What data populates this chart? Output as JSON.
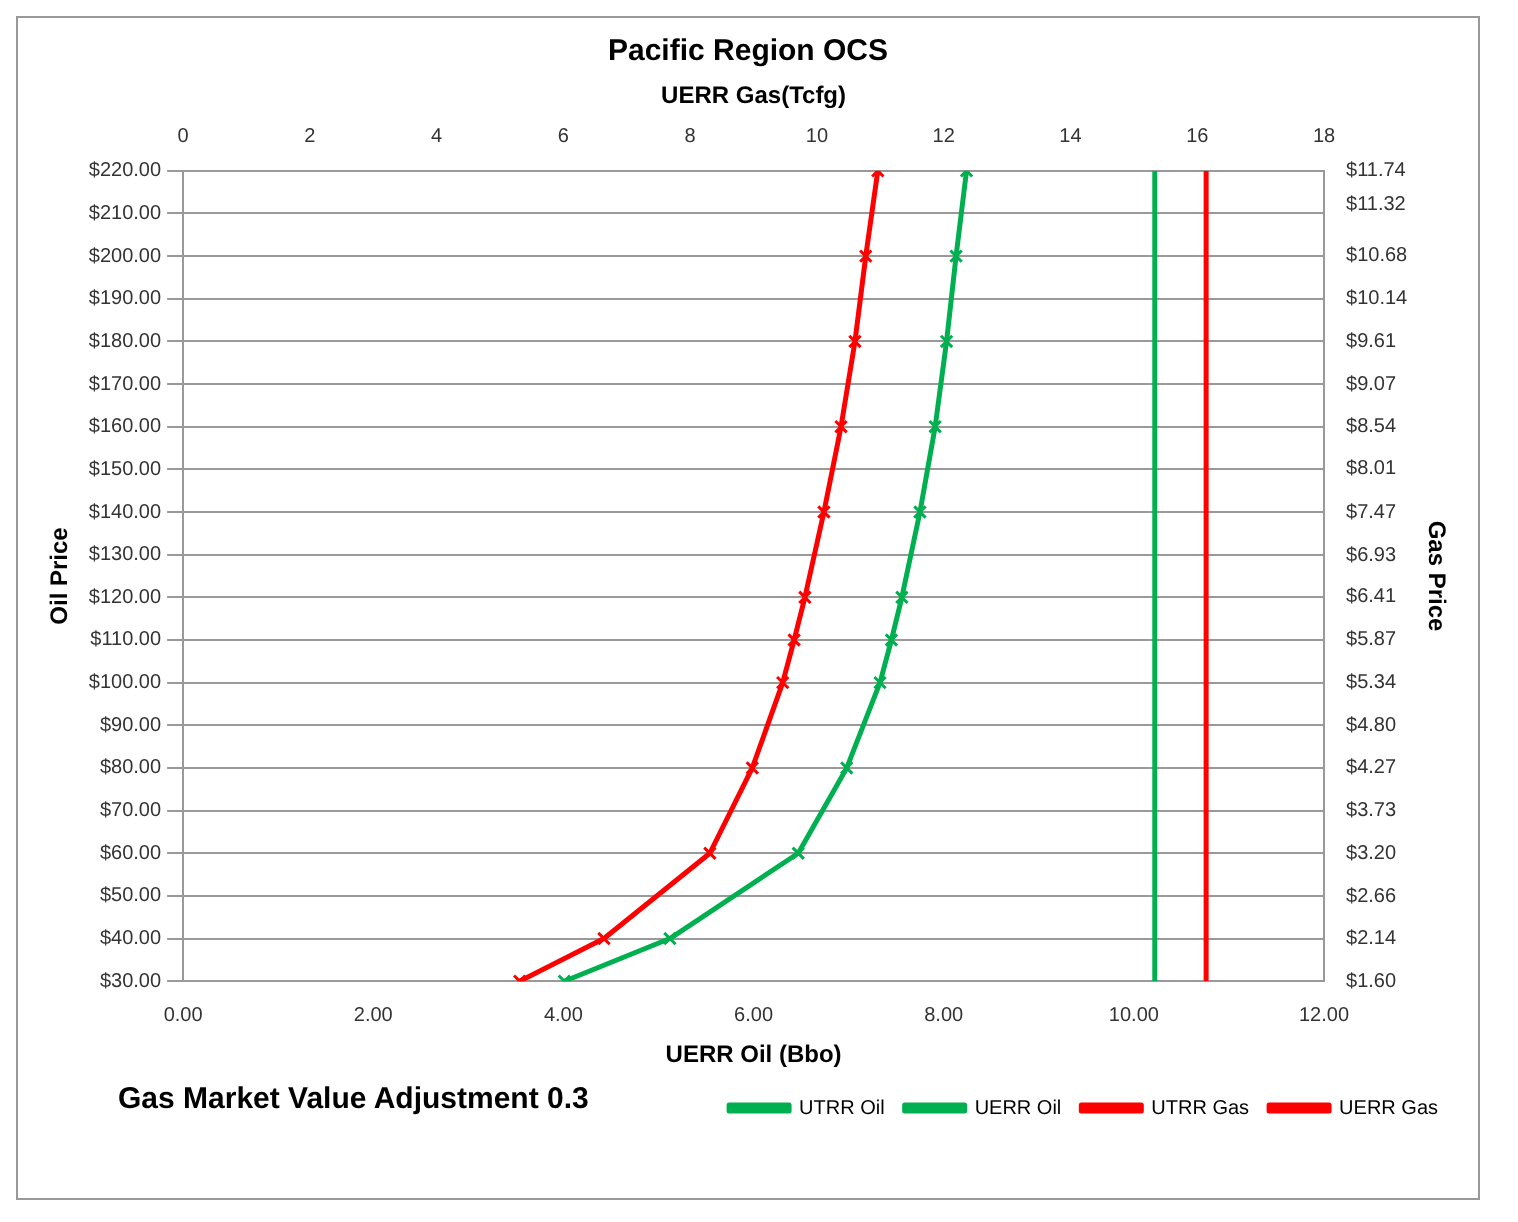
{
  "chart_data": {
    "type": "line",
    "title": "Pacific Region OCS",
    "xlabel": "UERR Oil (Bbo)",
    "x2label": "UERR Gas(Tcfg)",
    "ylabel": "Oil Price",
    "y2label": "Gas Price",
    "annotations": [
      "Gas Market Value Adjustment 0.3"
    ],
    "xlim": [
      0,
      12
    ],
    "xticks": [
      {
        "value": 0,
        "label": "0.00"
      },
      {
        "value": 2,
        "label": "2.00"
      },
      {
        "value": 4,
        "label": "4.00"
      },
      {
        "value": 6,
        "label": "6.00"
      },
      {
        "value": 8,
        "label": "8.00"
      },
      {
        "value": 10,
        "label": "10.00"
      },
      {
        "value": 12,
        "label": "12.00"
      }
    ],
    "x2lim": [
      0,
      18
    ],
    "x2ticks": [
      0,
      2,
      4,
      6,
      8,
      10,
      12,
      14,
      16,
      18
    ],
    "ylim": [
      30,
      220
    ],
    "yticks": [
      {
        "value": 30,
        "label": "$30.00"
      },
      {
        "value": 40,
        "label": "$40.00"
      },
      {
        "value": 50,
        "label": "$50.00"
      },
      {
        "value": 60,
        "label": "$60.00"
      },
      {
        "value": 70,
        "label": "$70.00"
      },
      {
        "value": 80,
        "label": "$80.00"
      },
      {
        "value": 90,
        "label": "$90.00"
      },
      {
        "value": 100,
        "label": "$100.00"
      },
      {
        "value": 110,
        "label": "$110.00"
      },
      {
        "value": 120,
        "label": "$120.00"
      },
      {
        "value": 130,
        "label": "$130.00"
      },
      {
        "value": 140,
        "label": "$140.00"
      },
      {
        "value": 150,
        "label": "$150.00"
      },
      {
        "value": 160,
        "label": "$160.00"
      },
      {
        "value": 170,
        "label": "$170.00"
      },
      {
        "value": 180,
        "label": "$180.00"
      },
      {
        "value": 190,
        "label": "$190.00"
      },
      {
        "value": 200,
        "label": "$200.00"
      },
      {
        "value": 210,
        "label": "$210.00"
      },
      {
        "value": 220,
        "label": "$220.00"
      }
    ],
    "y2lim": [
      1.6,
      11.74
    ],
    "y2ticks": [
      {
        "value": 1.6,
        "label": "$1.60"
      },
      {
        "value": 2.14,
        "label": "$2.14"
      },
      {
        "value": 2.66,
        "label": "$2.66"
      },
      {
        "value": 3.2,
        "label": "$3.20"
      },
      {
        "value": 3.73,
        "label": "$3.73"
      },
      {
        "value": 4.27,
        "label": "$4.27"
      },
      {
        "value": 4.8,
        "label": "$4.80"
      },
      {
        "value": 5.34,
        "label": "$5.34"
      },
      {
        "value": 5.87,
        "label": "$5.87"
      },
      {
        "value": 6.41,
        "label": "$6.41"
      },
      {
        "value": 6.93,
        "label": "$6.93"
      },
      {
        "value": 7.47,
        "label": "$7.47"
      },
      {
        "value": 8.01,
        "label": "$8.01"
      },
      {
        "value": 8.54,
        "label": "$8.54"
      },
      {
        "value": 9.07,
        "label": "$9.07"
      },
      {
        "value": 9.61,
        "label": "$9.61"
      },
      {
        "value": 10.14,
        "label": "$10.14"
      },
      {
        "value": 10.68,
        "label": "$10.68"
      },
      {
        "value": 11.32,
        "label": "$11.32"
      },
      {
        "value": 11.74,
        "label": "$11.74"
      }
    ],
    "grid": "y",
    "legend": "bottom",
    "line_style": "solid",
    "series": [
      {
        "name": "UTRR Oil",
        "color": "#00b050",
        "marker": "none",
        "x": [
          10.22,
          10.22
        ],
        "values": [
          30,
          220
        ]
      },
      {
        "name": "UERR Oil",
        "color": "#00b050",
        "marker": "cross",
        "x": [
          4.01,
          5.12,
          6.47,
          6.98,
          7.33,
          7.45,
          7.56,
          7.75,
          7.91,
          8.03,
          8.13,
          8.24
        ],
        "values": [
          30,
          40,
          60,
          80,
          100,
          110,
          120,
          140,
          160,
          180,
          200,
          220
        ]
      },
      {
        "name": "UTRR Gas",
        "color": "#ff0000",
        "marker": "none",
        "axis": "x2",
        "x": [
          16.14,
          16.14
        ],
        "values": [
          30,
          220
        ]
      },
      {
        "name": "UERR Gas",
        "color": "#ff0000",
        "marker": "cross",
        "axis": "x2",
        "x": [
          5.31,
          6.64,
          8.31,
          8.98,
          9.46,
          9.64,
          9.81,
          10.11,
          10.38,
          10.6,
          10.77,
          10.96
        ],
        "values": [
          30,
          40,
          60,
          80,
          100,
          110,
          120,
          140,
          160,
          180,
          200,
          220
        ]
      }
    ]
  }
}
